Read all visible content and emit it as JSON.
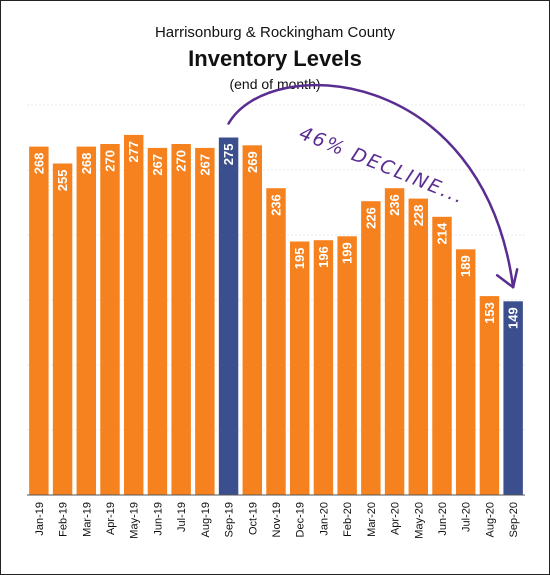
{
  "header": {
    "line1": "Harrisonburg & Rockingham County",
    "title": "Inventory Levels",
    "line3": "(end of month)"
  },
  "colors": {
    "bar": "#f5821f",
    "highlight": "#3b4f8e",
    "annotation": "#5a2d91",
    "grid": "#e8e8e8",
    "axis": "#555555"
  },
  "chart_data": {
    "type": "bar",
    "title": "Inventory Levels",
    "subtitle": "Harrisonburg & Rockingham County (end of month)",
    "categories": [
      "Jan-19",
      "Feb-19",
      "Mar-19",
      "Apr-19",
      "May-19",
      "Jun-19",
      "Jul-19",
      "Aug-19",
      "Sep-19",
      "Oct-19",
      "Nov-19",
      "Dec-19",
      "Jan-20",
      "Feb-20",
      "Mar-20",
      "Apr-20",
      "May-20",
      "Jun-20",
      "Jul-20",
      "Aug-20",
      "Sep-20"
    ],
    "values": [
      268,
      255,
      268,
      270,
      277,
      267,
      270,
      267,
      275,
      269,
      236,
      195,
      196,
      199,
      226,
      236,
      228,
      214,
      189,
      153,
      149
    ],
    "highlighted": [
      "Sep-19",
      "Sep-20"
    ],
    "ylim": [
      0,
      300
    ],
    "grid": true,
    "annotation": "46% DECLINE..."
  }
}
